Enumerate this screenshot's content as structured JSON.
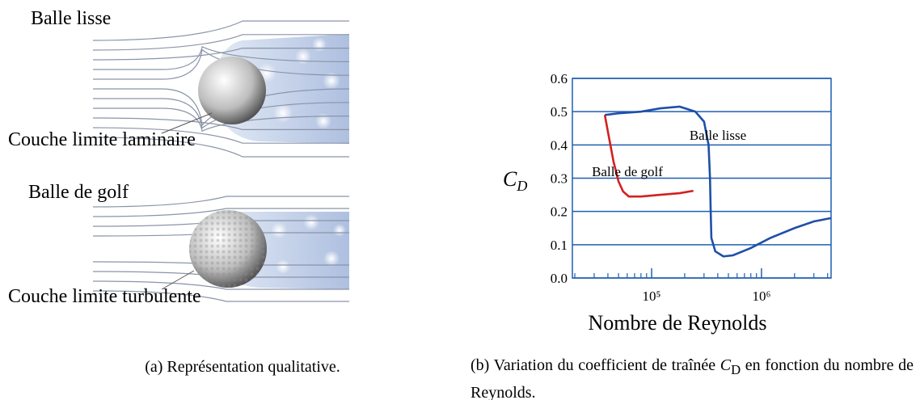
{
  "figure_a": {
    "labels": [
      "Balle lisse",
      "Couche limite laminaire",
      "Balle de golf",
      "Couche limite turbulente"
    ],
    "caption": "(a) Représentation qualitative."
  },
  "figure_b": {
    "caption_before": "(b) Variation du coefficient de traînée ",
    "caption_symbol": "C",
    "caption_sub": "D",
    "caption_after": " en fonction du nombre de Reynolds."
  },
  "chart_data": {
    "type": "line",
    "xscale": "log",
    "grid": true,
    "xlabel": "Nombre de Reynolds",
    "ylabel": "C",
    "ylabel_sub": "D",
    "xlim": [
      19000,
      4300000
    ],
    "ylim": [
      0,
      0.6
    ],
    "xticks": [
      {
        "value": 100000,
        "label": "10⁵"
      },
      {
        "value": 1000000,
        "label": "10⁶"
      }
    ],
    "xminorticks": [
      20000,
      30000,
      40000,
      50000,
      60000,
      70000,
      80000,
      90000,
      200000,
      300000,
      400000,
      500000,
      600000,
      700000,
      800000,
      900000,
      2000000,
      3000000,
      4000000
    ],
    "yticks": [
      {
        "value": 0,
        "label": "0.0"
      },
      0.1,
      0.2,
      0.3,
      0.4,
      0.5,
      0.6
    ],
    "series": [
      {
        "name": "Balle lisse",
        "color": "#1f4fa8",
        "x": [
          37500,
          50000,
          80000,
          120000,
          180000,
          250000,
          300000,
          330000,
          340000,
          345000,
          350000,
          380000,
          450000,
          550000,
          800000,
          1200000,
          2000000,
          3000000,
          4300000
        ],
        "values": [
          0.49,
          0.495,
          0.5,
          0.51,
          0.515,
          0.5,
          0.47,
          0.4,
          0.3,
          0.2,
          0.12,
          0.08,
          0.065,
          0.068,
          0.09,
          0.12,
          0.15,
          0.17,
          0.18
        ]
      },
      {
        "name": "Balle de golf",
        "color": "#d42020",
        "x": [
          37500,
          40000,
          45000,
          50000,
          55000,
          62000,
          80000,
          120000,
          180000,
          240000
        ],
        "values": [
          0.49,
          0.44,
          0.35,
          0.29,
          0.26,
          0.245,
          0.245,
          0.25,
          0.255,
          0.262
        ]
      }
    ]
  }
}
